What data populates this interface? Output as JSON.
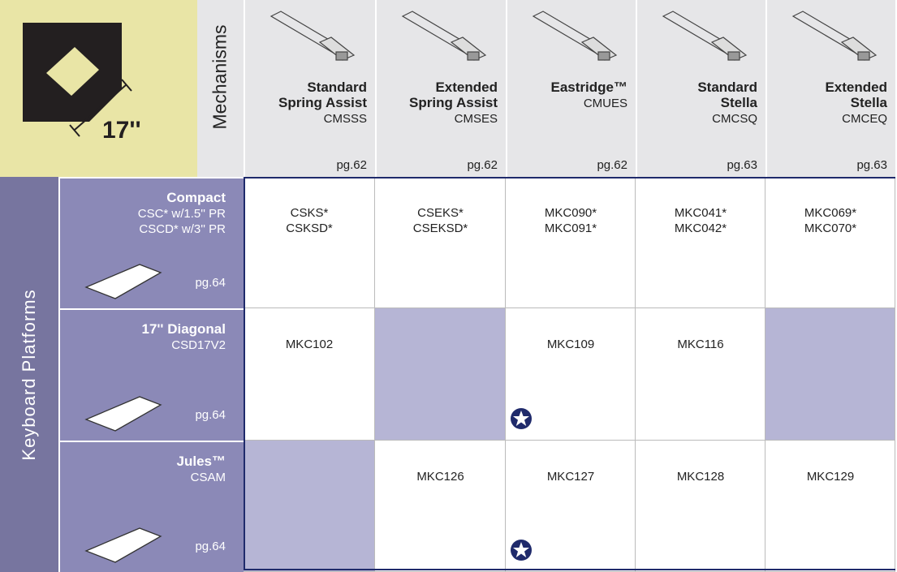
{
  "corner": {
    "size": "17''",
    "header_label": "Mechanisms",
    "side_label": "Keyboard Platforms"
  },
  "mechanisms": [
    {
      "name": [
        "Standard",
        "Spring Assist"
      ],
      "code": "CMSSS",
      "page": "pg.62"
    },
    {
      "name": [
        "Extended",
        "Spring Assist"
      ],
      "code": "CMSES",
      "page": "pg.62"
    },
    {
      "name": [
        "Eastridge™"
      ],
      "code": "CMUES",
      "page": "pg.62"
    },
    {
      "name": [
        "Standard",
        "Stella"
      ],
      "code": "CMCSQ",
      "page": "pg.63"
    },
    {
      "name": [
        "Extended",
        "Stella"
      ],
      "code": "CMCEQ",
      "page": "pg.63"
    }
  ],
  "platforms": [
    {
      "name": "Compact",
      "details": [
        "CSC* w/1.5'' PR",
        "CSCD* w/3'' PR"
      ],
      "page": "pg.64"
    },
    {
      "name": "17'' Diagonal",
      "details": [
        "CSD17V2"
      ],
      "page": "pg.64"
    },
    {
      "name": "Jules™",
      "details": [
        "CSAM"
      ],
      "page": "pg.64"
    }
  ],
  "cells": [
    [
      {
        "codes": [
          "CSKS*",
          "CSKSD*"
        ],
        "star": false
      },
      {
        "codes": [
          "CSEKS*",
          "CSEKSD*"
        ],
        "star": false
      },
      {
        "codes": [
          "MKC090*",
          "MKC091*"
        ],
        "star": false
      },
      {
        "codes": [
          "MKC041*",
          "MKC042*"
        ],
        "star": false
      },
      {
        "codes": [
          "MKC069*",
          "MKC070*"
        ],
        "star": false
      }
    ],
    [
      {
        "codes": [
          "MKC102"
        ],
        "star": false
      },
      null,
      {
        "codes": [
          "MKC109"
        ],
        "star": true
      },
      {
        "codes": [
          "MKC116"
        ],
        "star": false
      },
      null
    ],
    [
      null,
      {
        "codes": [
          "MKC126"
        ],
        "star": false
      },
      {
        "codes": [
          "MKC127"
        ],
        "star": true
      },
      {
        "codes": [
          "MKC128"
        ],
        "star": false
      },
      {
        "codes": [
          "MKC129"
        ],
        "star": false
      }
    ]
  ]
}
